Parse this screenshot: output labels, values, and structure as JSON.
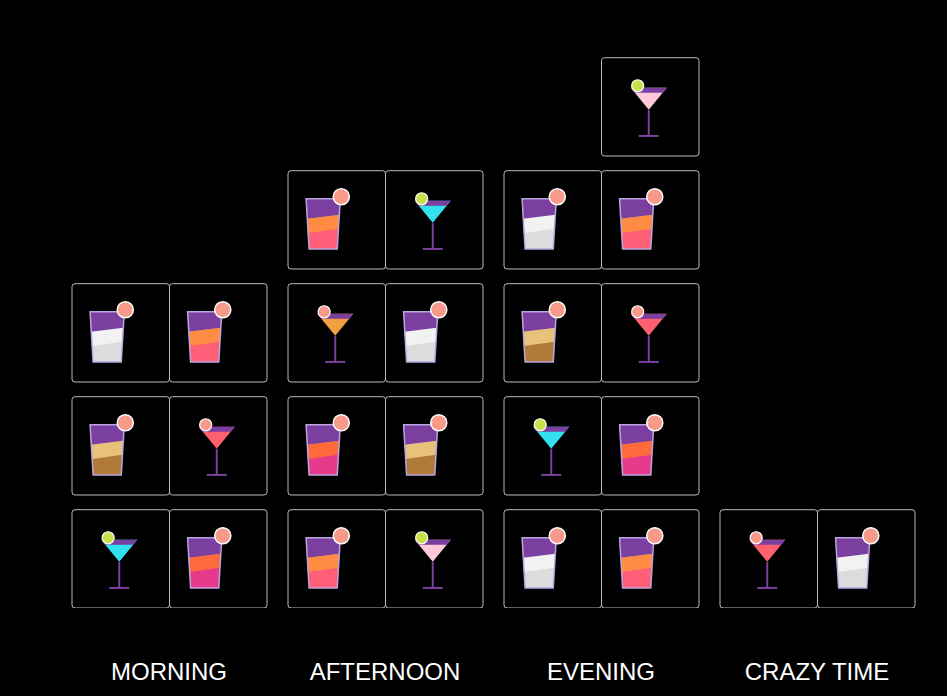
{
  "chart_data": {
    "type": "pictogram",
    "categories": [
      "MORNING",
      "AFTERNOON",
      "EVENING",
      "CRAZY TIME"
    ],
    "values": [
      6,
      8,
      9,
      2
    ],
    "ylim": [
      0,
      10
    ],
    "tick_labels": "x"
  }
}
